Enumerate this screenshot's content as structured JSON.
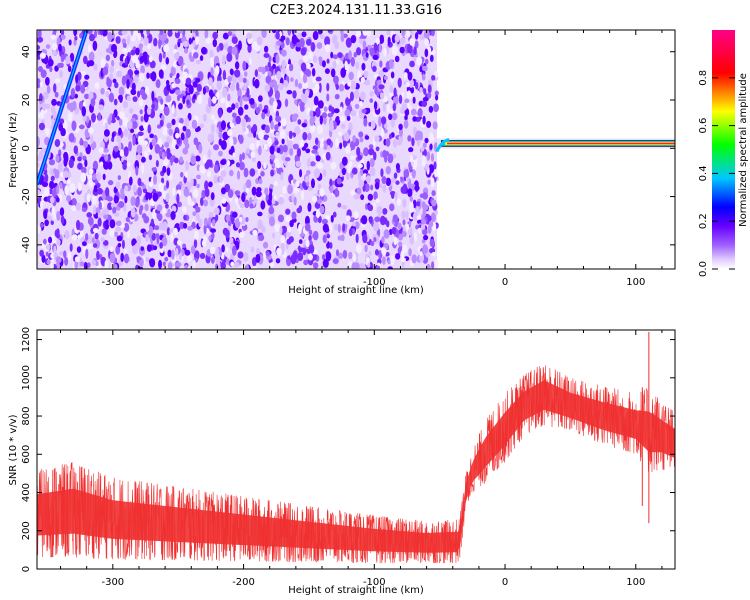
{
  "title": "C2E3.2024.131.11.33.G16",
  "chart_data": [
    {
      "type": "heatmap",
      "xlabel": "Height of straight line (km)",
      "ylabel": "Frequency (Hz)",
      "xlim": [
        -358,
        130
      ],
      "ylim": [
        -50,
        49
      ],
      "x_ticks": [
        -300,
        -200,
        -100,
        0,
        100
      ],
      "y_ticks": [
        -40,
        -20,
        0,
        20,
        40
      ],
      "colorbar": {
        "label": "Normalized spectral amplitude",
        "range": [
          0,
          1
        ],
        "ticks": [
          "0.0",
          "0.2",
          "0.4",
          "0.6",
          "0.8"
        ],
        "colors": [
          "#ffffff",
          "#e0ccff",
          "#a060ff",
          "#6600ff",
          "#0000ff",
          "#00c8ff",
          "#00ff00",
          "#ffff00",
          "#ff0000",
          "#ff0088"
        ]
      },
      "features": {
        "noise_band_x": [
          -358,
          -52
        ],
        "signal_line_x": [
          -52,
          130
        ],
        "signal_line_frequency_hz": 2,
        "diagonal_track": {
          "x": [
            -358,
            -320
          ],
          "frequency_hz": [
            -15,
            49
          ]
        }
      }
    },
    {
      "type": "line",
      "xlabel": "Height of straight line (km)",
      "ylabel": "SNR (10 * v/v)",
      "xlim": [
        -358,
        130
      ],
      "ylim": [
        0,
        1250
      ],
      "x_ticks": [
        -300,
        -200,
        -100,
        0,
        100
      ],
      "y_ticks": [
        0,
        200,
        400,
        600,
        800,
        1000,
        1200
      ],
      "color": "#f03030",
      "envelope": {
        "x": [
          -358,
          -330,
          -300,
          -250,
          -200,
          -150,
          -100,
          -60,
          -35,
          -30,
          -25,
          -15,
          0,
          15,
          30,
          50,
          75,
          100,
          110,
          120,
          130
        ],
        "low": [
          60,
          60,
          50,
          45,
          40,
          35,
          30,
          30,
          30,
          300,
          400,
          450,
          560,
          700,
          750,
          720,
          650,
          600,
          500,
          520,
          500
        ],
        "high": [
          520,
          560,
          480,
          430,
          380,
          330,
          280,
          250,
          260,
          500,
          620,
          780,
          920,
          1020,
          1080,
          1000,
          960,
          920,
          950,
          880,
          820
        ]
      }
    }
  ]
}
